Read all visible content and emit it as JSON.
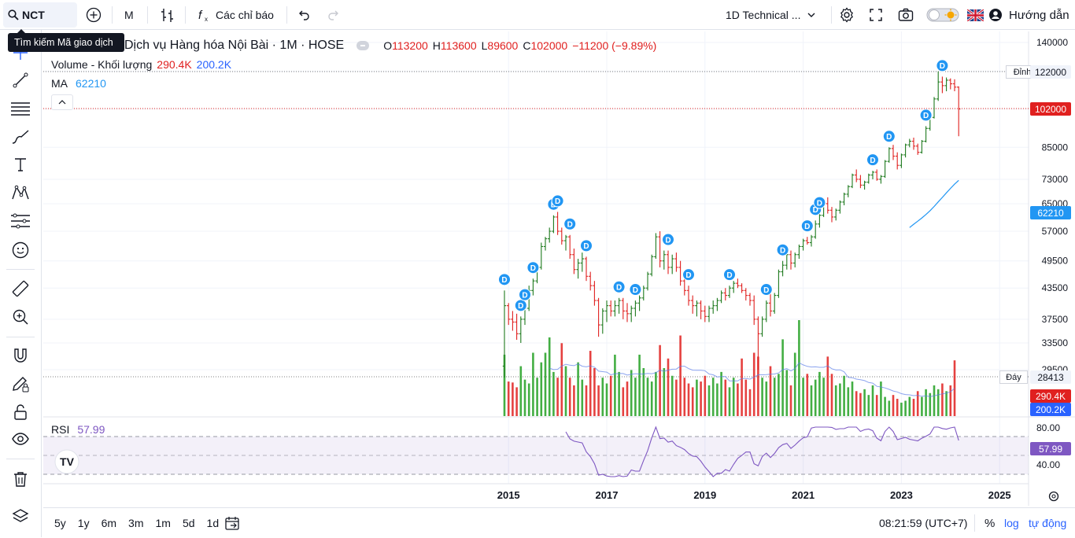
{
  "toolbar": {
    "symbol": "NCT",
    "interval": "M",
    "indicators_label": "Các chỉ báo",
    "layout_name": "1D Technical ...",
    "help_label": "Hướng dẫn",
    "search_tooltip": "Tìm kiếm Mã giao dịch"
  },
  "legend": {
    "title": "Dịch vụ Hàng hóa Nội Bài · 1M · HOSE",
    "o_label": "O",
    "o": "113200",
    "h_label": "H",
    "h": "113600",
    "l_label": "L",
    "l": "89600",
    "c_label": "C",
    "c": "102000",
    "change": "−11200 (−9.89%)",
    "volume_label": "Volume - Khối lượng",
    "volume_value": "290.4K",
    "volume_ma": "200.2K",
    "ma_label": "MA",
    "ma_value": "62210",
    "rsi_label": "RSI",
    "rsi_value": "57.99"
  },
  "price_axis": {
    "ticks": [
      "140000",
      "122000",
      "102000",
      "85000",
      "73000",
      "65000",
      "57000",
      "49500",
      "43500",
      "37500",
      "33500",
      "29500"
    ],
    "high_label": "Đỉnh",
    "high_value": "122000",
    "low_label": "Đáy",
    "low_value": "28413",
    "last_price": "102000",
    "ma_tag": "62210",
    "vol_tag": "290.4K",
    "vol_ma_tag": "200.2K"
  },
  "rsi_axis": {
    "ticks": [
      "80.00",
      "40.00"
    ],
    "value_tag": "57.99"
  },
  "time_axis": [
    "2015",
    "2017",
    "2019",
    "2021",
    "2023",
    "2025"
  ],
  "bottom": {
    "ranges": [
      "5y",
      "1y",
      "6m",
      "3m",
      "1m",
      "5d",
      "1d"
    ],
    "clock": "08:21:59 (UTC+7)",
    "percent": "%",
    "log": "log",
    "auto": "tự động"
  },
  "colors": {
    "up": "#089981",
    "up_candle": "#1e7a1e",
    "down": "#e0201f",
    "ma": "#2196f3",
    "rsi": "#7e57c2",
    "dividend": "#2196f3"
  },
  "chart_data": {
    "type": "ohlc",
    "interval": "1M",
    "price_scale": "log",
    "start": "2014-12",
    "series": [
      {
        "name": "price",
        "ohlc": [
          [
            30000,
            43000,
            28413,
            40000
          ],
          [
            40000,
            40500,
            36500,
            37500
          ],
          [
            37500,
            39000,
            35500,
            37000
          ],
          [
            37000,
            38500,
            34000,
            35000
          ],
          [
            35000,
            38000,
            33500,
            37500
          ],
          [
            37500,
            40000,
            36500,
            39500
          ],
          [
            39500,
            44000,
            39000,
            43000
          ],
          [
            43000,
            45500,
            42000,
            45000
          ],
          [
            45000,
            48500,
            44500,
            48000
          ],
          [
            48000,
            54000,
            47500,
            53000
          ],
          [
            53000,
            55500,
            52000,
            55000
          ],
          [
            55000,
            58000,
            54000,
            57000
          ],
          [
            57000,
            61500,
            56500,
            61000
          ],
          [
            61000,
            62500,
            56000,
            57000
          ],
          [
            57000,
            58000,
            53500,
            54500
          ],
          [
            54500,
            56000,
            52000,
            55500
          ],
          [
            55500,
            56000,
            50000,
            51000
          ],
          [
            51000,
            52500,
            46500,
            47500
          ],
          [
            47500,
            50000,
            45500,
            49000
          ],
          [
            49000,
            51500,
            47000,
            50000
          ],
          [
            50000,
            50500,
            45000,
            46000
          ],
          [
            46000,
            47000,
            43000,
            44000
          ],
          [
            44000,
            45000,
            40000,
            41000
          ],
          [
            41000,
            41500,
            34500,
            36500
          ],
          [
            36500,
            39500,
            35000,
            39000
          ],
          [
            39000,
            41000,
            37000,
            40000
          ],
          [
            40000,
            41000,
            38000,
            39000
          ],
          [
            39000,
            41000,
            38000,
            40000
          ],
          [
            40000,
            41500,
            38500,
            41000
          ],
          [
            41000,
            41500,
            37500,
            39000
          ],
          [
            39000,
            40500,
            37000,
            38500
          ],
          [
            38500,
            40000,
            37000,
            39500
          ],
          [
            39500,
            41000,
            38000,
            40500
          ],
          [
            40500,
            42000,
            39000,
            41500
          ],
          [
            41500,
            44000,
            41000,
            43500
          ],
          [
            43500,
            47000,
            43000,
            46500
          ],
          [
            46500,
            51000,
            46000,
            50500
          ],
          [
            50500,
            56500,
            50000,
            55500
          ],
          [
            55500,
            57000,
            48000,
            49500
          ],
          [
            49500,
            52000,
            47500,
            51000
          ],
          [
            51000,
            52000,
            46500,
            48000
          ],
          [
            48000,
            51000,
            46500,
            50000
          ],
          [
            50000,
            51500,
            47000,
            48000
          ],
          [
            48000,
            49500,
            44000,
            45000
          ],
          [
            45000,
            46500,
            42000,
            43000
          ],
          [
            43000,
            44000,
            40000,
            41000
          ],
          [
            41000,
            42000,
            38500,
            40000
          ],
          [
            40000,
            41000,
            38000,
            40500
          ],
          [
            40500,
            41000,
            37500,
            39000
          ],
          [
            39000,
            40000,
            37000,
            38000
          ],
          [
            38000,
            40000,
            37000,
            39500
          ],
          [
            39500,
            41000,
            38500,
            40000
          ],
          [
            40000,
            41500,
            39000,
            41000
          ],
          [
            41000,
            43000,
            40500,
            42500
          ],
          [
            42500,
            43500,
            41000,
            42000
          ],
          [
            42000,
            44000,
            41500,
            43500
          ],
          [
            43500,
            45000,
            42500,
            44500
          ],
          [
            44500,
            45500,
            43500,
            44000
          ],
          [
            44000,
            44500,
            42500,
            43000
          ],
          [
            43000,
            43500,
            41000,
            42000
          ],
          [
            42000,
            42500,
            40000,
            41000
          ],
          [
            41000,
            42000,
            36500,
            37500
          ],
          [
            37500,
            38000,
            29500,
            35000
          ],
          [
            35000,
            38000,
            34500,
            37500
          ],
          [
            37500,
            41000,
            37000,
            40500
          ],
          [
            40500,
            43000,
            38000,
            39000
          ],
          [
            39000,
            42500,
            38500,
            42000
          ],
          [
            42000,
            47500,
            41500,
            47000
          ],
          [
            47000,
            49500,
            46000,
            48500
          ],
          [
            48500,
            51500,
            47500,
            51000
          ],
          [
            51000,
            52000,
            47500,
            49000
          ],
          [
            49000,
            51500,
            48000,
            51000
          ],
          [
            51000,
            53500,
            50000,
            53000
          ],
          [
            53000,
            55000,
            52000,
            54500
          ],
          [
            54500,
            55500,
            53500,
            54000
          ],
          [
            54000,
            56000,
            53000,
            55500
          ],
          [
            55500,
            60000,
            55000,
            59000
          ],
          [
            59000,
            62000,
            58000,
            61500
          ],
          [
            61500,
            65500,
            61000,
            65000
          ],
          [
            65000,
            67000,
            62000,
            63000
          ],
          [
            63000,
            64000,
            59500,
            61000
          ],
          [
            61000,
            63500,
            60000,
            63000
          ],
          [
            63000,
            66000,
            62000,
            65500
          ],
          [
            65500,
            68500,
            64500,
            68000
          ],
          [
            68000,
            71000,
            67000,
            70500
          ],
          [
            70500,
            75000,
            70000,
            74500
          ],
          [
            74500,
            76500,
            72000,
            73000
          ],
          [
            73000,
            74500,
            70000,
            71000
          ],
          [
            71000,
            72500,
            69500,
            72000
          ],
          [
            72000,
            75000,
            71500,
            74500
          ],
          [
            74500,
            76000,
            73000,
            75500
          ],
          [
            75500,
            76500,
            72500,
            73000
          ],
          [
            73000,
            74500,
            71500,
            74000
          ],
          [
            74000,
            80000,
            73500,
            79500
          ],
          [
            79500,
            85000,
            79000,
            84500
          ],
          [
            84500,
            86000,
            80000,
            81500
          ],
          [
            81500,
            83000,
            76500,
            78000
          ],
          [
            78000,
            82500,
            77000,
            82000
          ],
          [
            82000,
            86500,
            81000,
            86000
          ],
          [
            86000,
            88500,
            85000,
            87500
          ],
          [
            87500,
            89000,
            84000,
            85500
          ],
          [
            85500,
            86500,
            82000,
            83000
          ],
          [
            83000,
            88000,
            82500,
            87500
          ],
          [
            87500,
            94000,
            87000,
            93000
          ],
          [
            93000,
            99000,
            92000,
            98000
          ],
          [
            98000,
            108000,
            97500,
            107000
          ],
          [
            107000,
            122000,
            106000,
            116000
          ],
          [
            116000,
            119000,
            110000,
            114000
          ],
          [
            114000,
            118500,
            111000,
            117000
          ],
          [
            117000,
            118000,
            112000,
            115000
          ],
          [
            115000,
            117500,
            111000,
            113200
          ],
          [
            113200,
            113600,
            89600,
            102000
          ]
        ]
      },
      {
        "name": "Volume - Khối lượng",
        "unit": "K",
        "values": [
          320,
          180,
          175,
          150,
          260,
          190,
          170,
          330,
          200,
          280,
          330,
          410,
          230,
          200,
          380,
          260,
          200,
          160,
          280,
          190,
          160,
          340,
          250,
          160,
          200,
          170,
          210,
          320,
          230,
          150,
          180,
          240,
          200,
          320,
          250,
          200,
          180,
          230,
          370,
          250,
          300,
          210,
          190,
          420,
          200,
          170,
          150,
          190,
          180,
          210,
          160,
          200,
          170,
          230,
          190,
          150,
          200,
          170,
          300,
          190,
          140,
          330,
          310,
          200,
          180,
          260,
          200,
          220,
          400,
          240,
          160,
          330,
          500,
          200,
          220,
          160,
          190,
          230,
          200,
          310,
          220,
          160,
          170,
          210,
          150,
          180,
          130,
          120,
          140,
          110,
          160,
          110,
          180,
          100,
          80,
          110,
          90,
          70,
          80,
          100,
          90,
          130,
          100,
          140,
          120,
          160,
          140,
          170,
          130,
          160,
          290.4
        ]
      },
      {
        "name": "MA",
        "values_note": "visible segment, last value",
        "last": 62210
      },
      {
        "name": "RSI",
        "last": 57.99
      }
    ],
    "dividend_markers": 26,
    "x_ticks": [
      "2015",
      "2017",
      "2019",
      "2021",
      "2023",
      "2025"
    ],
    "high": 122000,
    "low": 28413,
    "rsi_bands": [
      70,
      30
    ]
  }
}
